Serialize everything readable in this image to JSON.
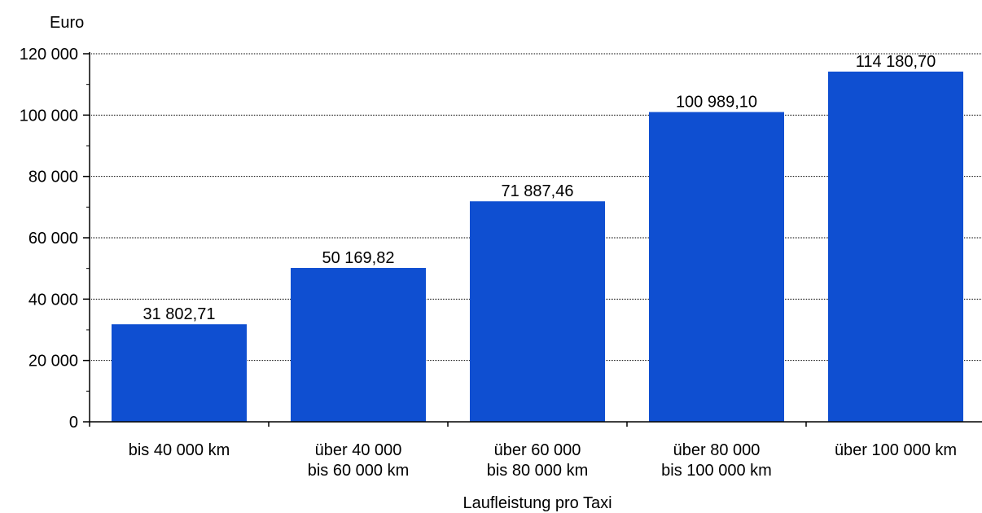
{
  "chart_data": {
    "type": "bar",
    "categories": [
      [
        "bis 40 000 km"
      ],
      [
        "über 40 000",
        "bis 60 000 km"
      ],
      [
        "über 60 000",
        "bis 80 000 km"
      ],
      [
        "über 80 000",
        "bis 100 000 km"
      ],
      [
        "über 100 000 km"
      ]
    ],
    "values": [
      31802.71,
      50169.82,
      71887.46,
      100989.1,
      114180.7
    ],
    "data_labels": [
      "31 802,71",
      "50 169,82",
      "71 887,46",
      "100 989,10",
      "114 180,70"
    ],
    "ylabel": "Euro",
    "xlabel": "Laufleistung pro Taxi",
    "ylim": [
      0,
      120000
    ],
    "yticks": [
      0,
      20000,
      40000,
      60000,
      80000,
      100000,
      120000
    ],
    "ytick_labels": [
      "0",
      "20 000",
      "40 000",
      "60 000",
      "80 000",
      "100 000",
      "120 000"
    ],
    "grid": true,
    "bar_color": "#0f4fd1"
  }
}
